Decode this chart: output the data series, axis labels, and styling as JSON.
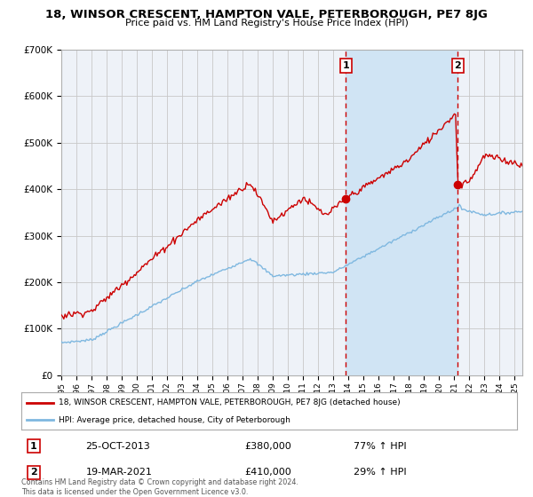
{
  "title": "18, WINSOR CRESCENT, HAMPTON VALE, PETERBOROUGH, PE7 8JG",
  "subtitle": "Price paid vs. HM Land Registry's House Price Index (HPI)",
  "legend_line1": "18, WINSOR CRESCENT, HAMPTON VALE, PETERBOROUGH, PE7 8JG (detached house)",
  "legend_line2": "HPI: Average price, detached house, City of Peterborough",
  "annotation1_label": "1",
  "annotation1_date": "25-OCT-2013",
  "annotation1_price": "£380,000",
  "annotation1_hpi": "77% ↑ HPI",
  "annotation2_label": "2",
  "annotation2_date": "19-MAR-2021",
  "annotation2_price": "£410,000",
  "annotation2_hpi": "29% ↑ HPI",
  "footer": "Contains HM Land Registry data © Crown copyright and database right 2024.\nThis data is licensed under the Open Government Licence v3.0.",
  "hpi_color": "#7fb8e0",
  "price_color": "#cc0000",
  "point_color": "#cc0000",
  "background_color": "#ffffff",
  "plot_bg_color": "#eef2f8",
  "grid_color": "#c8c8c8",
  "shaded_region_color": "#d0e4f4",
  "ylim": [
    0,
    700000
  ],
  "yticks": [
    0,
    100000,
    200000,
    300000,
    400000,
    500000,
    600000,
    700000
  ],
  "ytick_labels": [
    "£0",
    "£100K",
    "£200K",
    "£300K",
    "£400K",
    "£500K",
    "£600K",
    "£700K"
  ],
  "sale1_x": 2013.82,
  "sale1_y": 380000,
  "sale2_x": 2021.22,
  "sale2_y": 410000,
  "xmin": 1995.0,
  "xmax": 2025.5
}
